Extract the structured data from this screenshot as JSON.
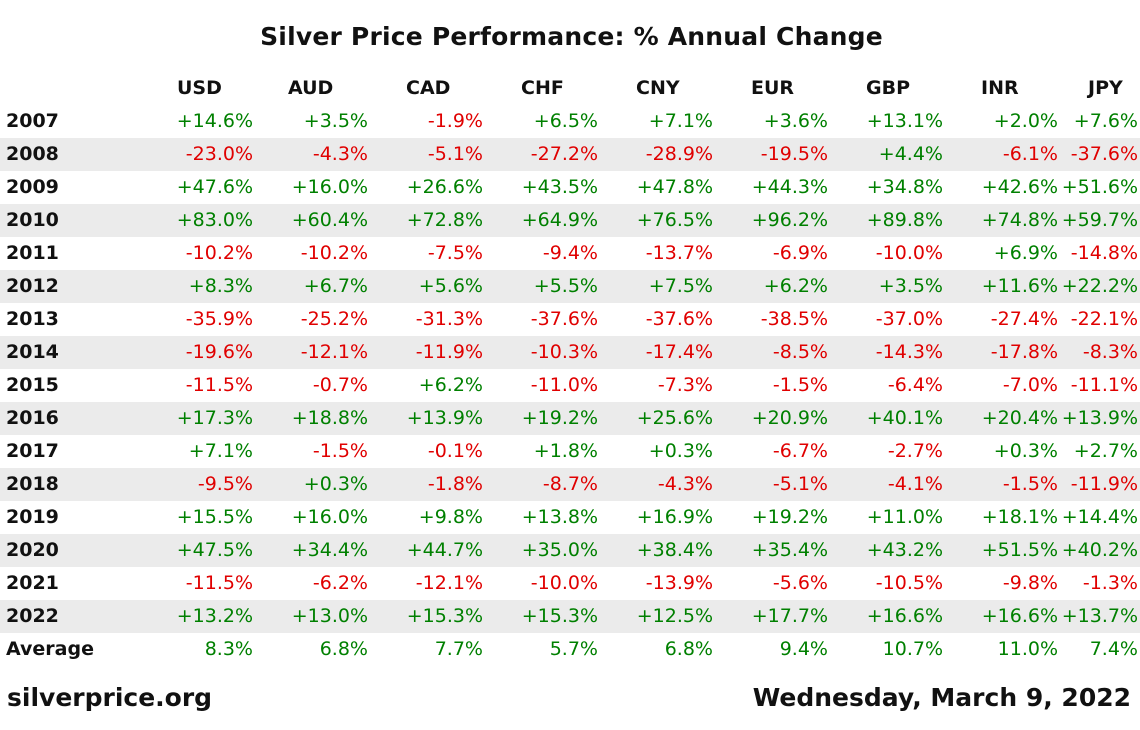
{
  "colors": {
    "positive": "#008000",
    "negative": "#e00000",
    "stripe": "#ebebeb"
  },
  "footer": {
    "site": "silverprice.org",
    "date": "Wednesday, March 9, 2022"
  },
  "chart_data": {
    "type": "table",
    "title": "Silver Price Performance: % Annual Change",
    "columns": [
      "USD",
      "AUD",
      "CAD",
      "CHF",
      "CNY",
      "EUR",
      "GBP",
      "INR",
      "JPY"
    ],
    "rows": [
      {
        "label": "2007",
        "values": [
          "+14.6%",
          "+3.5%",
          "-1.9%",
          "+6.5%",
          "+7.1%",
          "+3.6%",
          "+13.1%",
          "+2.0%",
          "+7.6%"
        ]
      },
      {
        "label": "2008",
        "values": [
          "-23.0%",
          "-4.3%",
          "-5.1%",
          "-27.2%",
          "-28.9%",
          "-19.5%",
          "+4.4%",
          "-6.1%",
          "-37.6%"
        ]
      },
      {
        "label": "2009",
        "values": [
          "+47.6%",
          "+16.0%",
          "+26.6%",
          "+43.5%",
          "+47.8%",
          "+44.3%",
          "+34.8%",
          "+42.6%",
          "+51.6%"
        ]
      },
      {
        "label": "2010",
        "values": [
          "+83.0%",
          "+60.4%",
          "+72.8%",
          "+64.9%",
          "+76.5%",
          "+96.2%",
          "+89.8%",
          "+74.8%",
          "+59.7%"
        ]
      },
      {
        "label": "2011",
        "values": [
          "-10.2%",
          "-10.2%",
          "-7.5%",
          "-9.4%",
          "-13.7%",
          "-6.9%",
          "-10.0%",
          "+6.9%",
          "-14.8%"
        ]
      },
      {
        "label": "2012",
        "values": [
          "+8.3%",
          "+6.7%",
          "+5.6%",
          "+5.5%",
          "+7.5%",
          "+6.2%",
          "+3.5%",
          "+11.6%",
          "+22.2%"
        ]
      },
      {
        "label": "2013",
        "values": [
          "-35.9%",
          "-25.2%",
          "-31.3%",
          "-37.6%",
          "-37.6%",
          "-38.5%",
          "-37.0%",
          "-27.4%",
          "-22.1%"
        ]
      },
      {
        "label": "2014",
        "values": [
          "-19.6%",
          "-12.1%",
          "-11.9%",
          "-10.3%",
          "-17.4%",
          "-8.5%",
          "-14.3%",
          "-17.8%",
          "-8.3%"
        ]
      },
      {
        "label": "2015",
        "values": [
          "-11.5%",
          "-0.7%",
          "+6.2%",
          "-11.0%",
          "-7.3%",
          "-1.5%",
          "-6.4%",
          "-7.0%",
          "-11.1%"
        ]
      },
      {
        "label": "2016",
        "values": [
          "+17.3%",
          "+18.8%",
          "+13.9%",
          "+19.2%",
          "+25.6%",
          "+20.9%",
          "+40.1%",
          "+20.4%",
          "+13.9%"
        ]
      },
      {
        "label": "2017",
        "values": [
          "+7.1%",
          "-1.5%",
          "-0.1%",
          "+1.8%",
          "+0.3%",
          "-6.7%",
          "-2.7%",
          "+0.3%",
          "+2.7%"
        ]
      },
      {
        "label": "2018",
        "values": [
          "-9.5%",
          "+0.3%",
          "-1.8%",
          "-8.7%",
          "-4.3%",
          "-5.1%",
          "-4.1%",
          "-1.5%",
          "-11.9%"
        ]
      },
      {
        "label": "2019",
        "values": [
          "+15.5%",
          "+16.0%",
          "+9.8%",
          "+13.8%",
          "+16.9%",
          "+19.2%",
          "+11.0%",
          "+18.1%",
          "+14.4%"
        ]
      },
      {
        "label": "2020",
        "values": [
          "+47.5%",
          "+34.4%",
          "+44.7%",
          "+35.0%",
          "+38.4%",
          "+35.4%",
          "+43.2%",
          "+51.5%",
          "+40.2%"
        ]
      },
      {
        "label": "2021",
        "values": [
          "-11.5%",
          "-6.2%",
          "-12.1%",
          "-10.0%",
          "-13.9%",
          "-5.6%",
          "-10.5%",
          "-9.8%",
          "-1.3%"
        ]
      },
      {
        "label": "2022",
        "values": [
          "+13.2%",
          "+13.0%",
          "+15.3%",
          "+15.3%",
          "+12.5%",
          "+17.7%",
          "+16.6%",
          "+16.6%",
          "+13.7%"
        ]
      }
    ],
    "average": {
      "label": "Average",
      "values": [
        "8.3%",
        "6.8%",
        "7.7%",
        "5.7%",
        "6.8%",
        "9.4%",
        "10.7%",
        "11.0%",
        "7.4%"
      ]
    }
  }
}
